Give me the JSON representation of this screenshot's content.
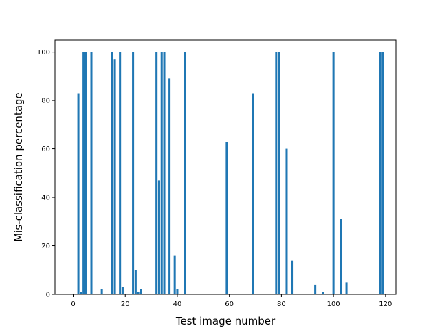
{
  "chart_data": {
    "type": "bar",
    "title": "",
    "xlabel": "Test image number",
    "ylabel": "Mis-classification percentage",
    "xlim": [
      -7,
      124
    ],
    "ylim": [
      0,
      105
    ],
    "xticks": [
      0,
      20,
      40,
      60,
      80,
      100,
      120
    ],
    "yticks": [
      0,
      20,
      40,
      60,
      80,
      100
    ],
    "grid": false,
    "bar_width": 0.8,
    "color": "#1f77b4",
    "x": [
      2,
      3,
      4,
      5,
      7,
      11,
      15,
      16,
      18,
      19,
      23,
      24,
      25,
      26,
      32,
      33,
      34,
      35,
      37,
      39,
      40,
      43,
      59,
      69,
      78,
      79,
      82,
      84,
      93,
      96,
      100,
      103,
      105,
      118,
      119
    ],
    "values": [
      83,
      1,
      100,
      100,
      100,
      2,
      100,
      97,
      100,
      3,
      100,
      10,
      1,
      2,
      100,
      47,
      100,
      100,
      89,
      16,
      2,
      100,
      63,
      83,
      100,
      100,
      60,
      14,
      4,
      1,
      100,
      31,
      5,
      100,
      100
    ]
  }
}
